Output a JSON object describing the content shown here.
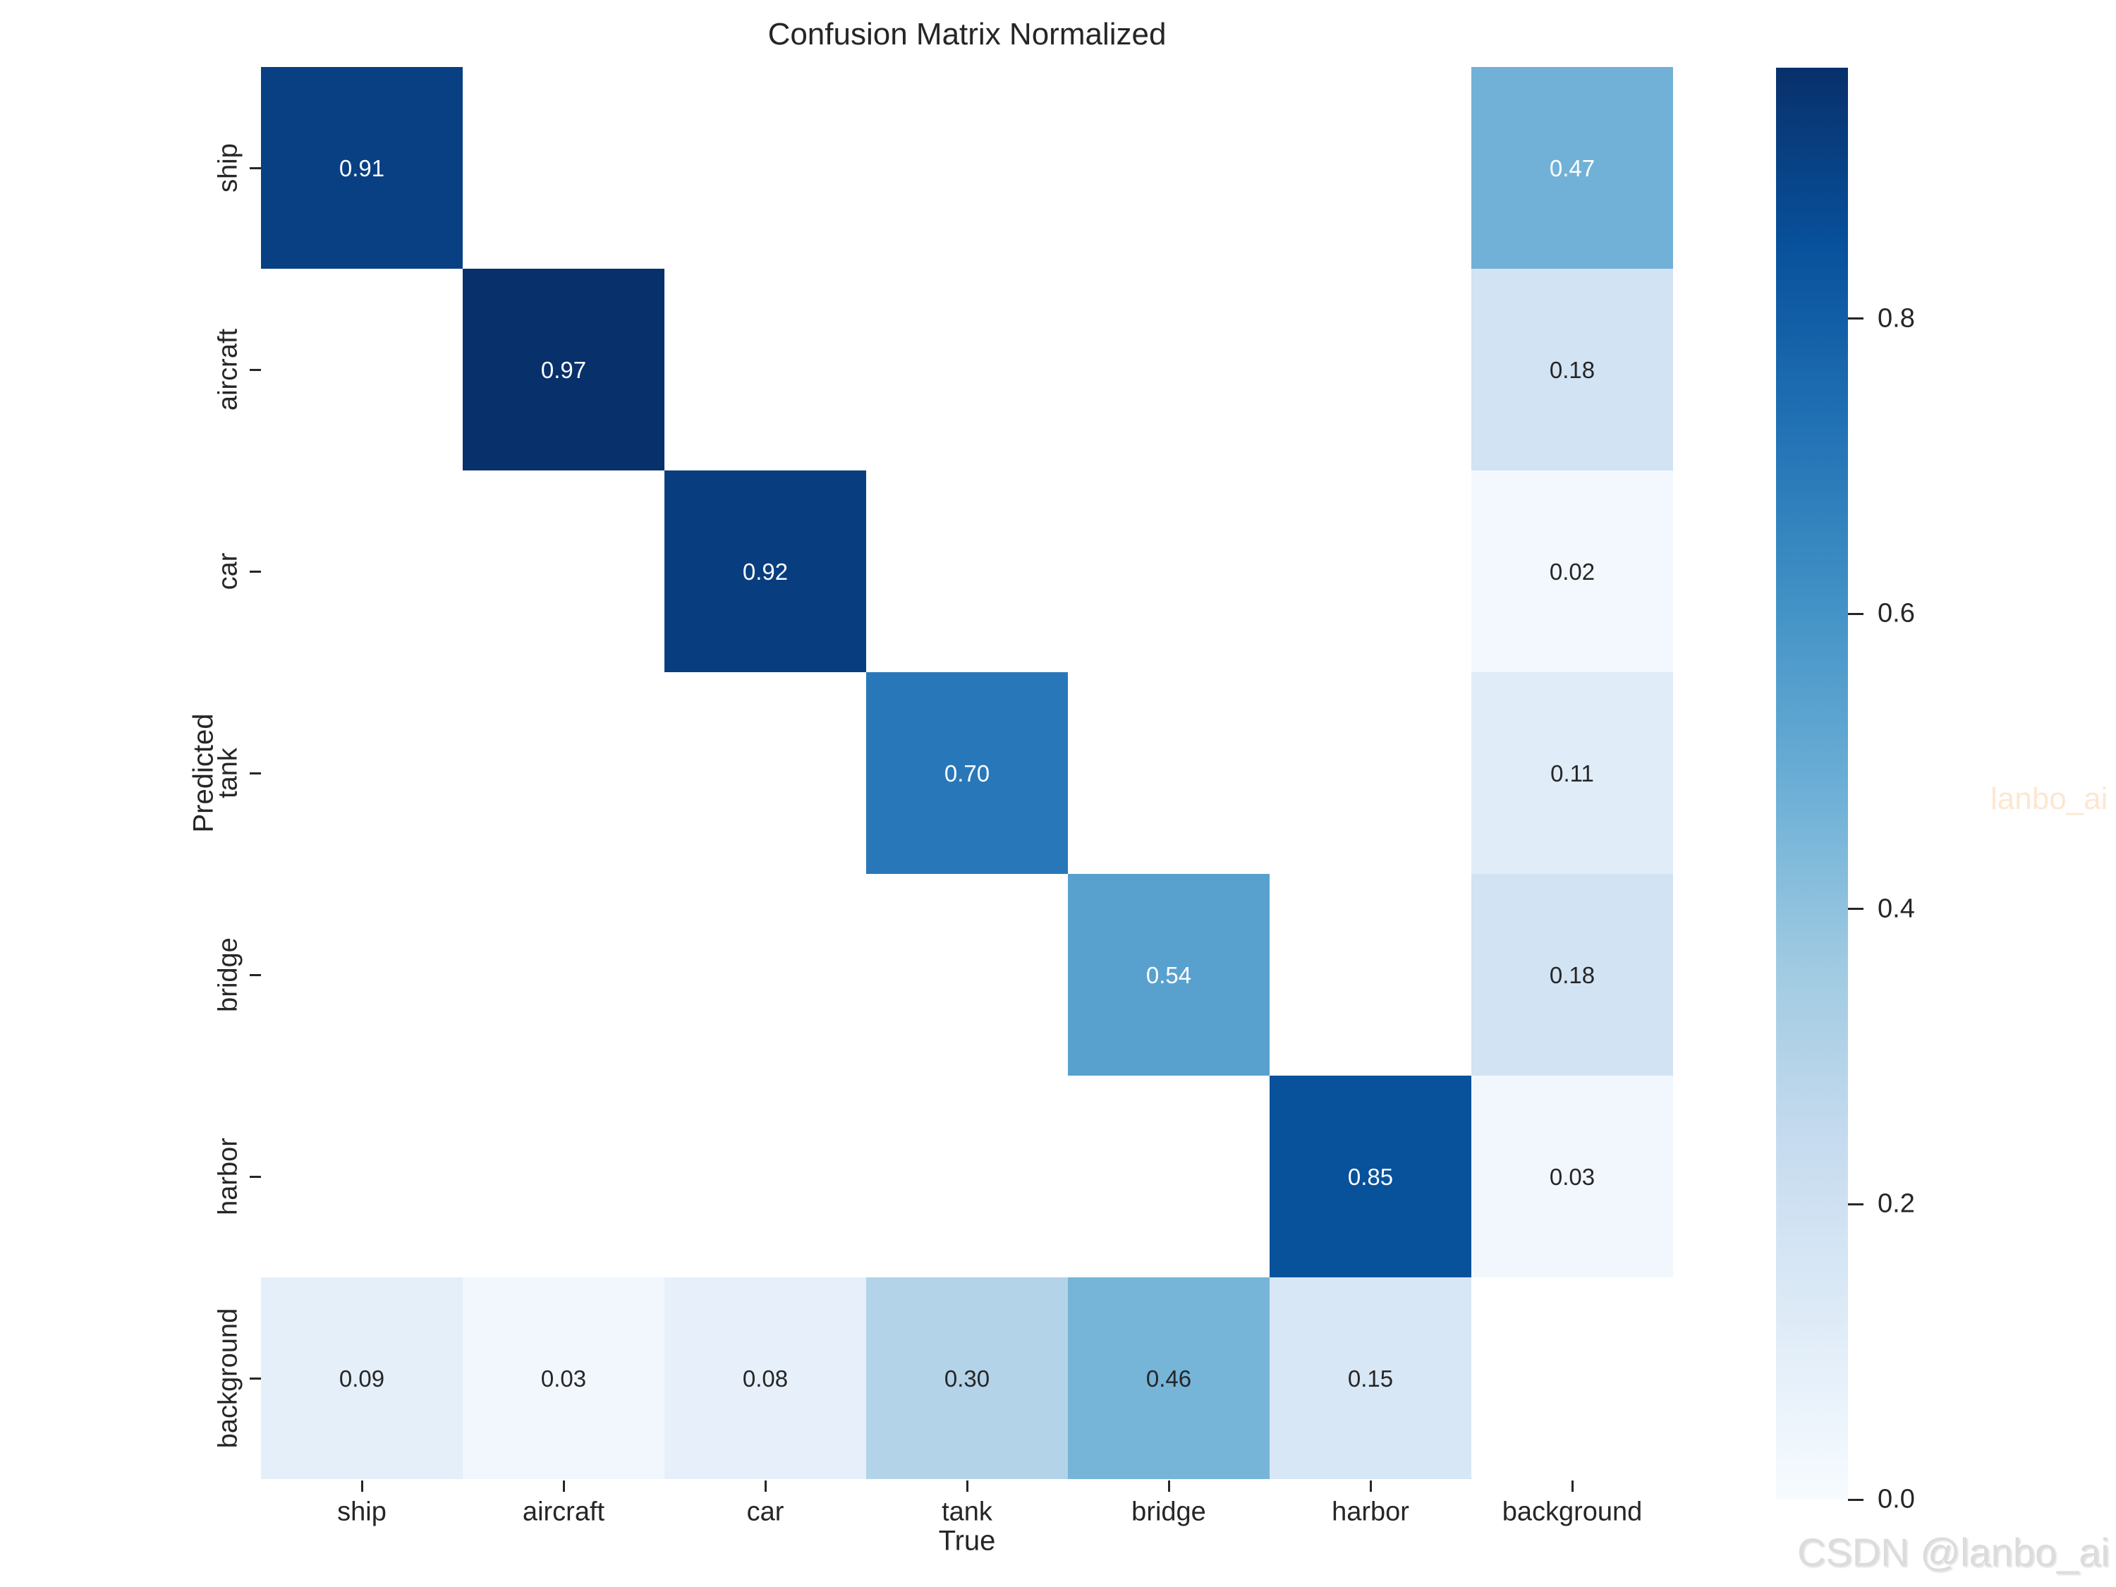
{
  "figure": {
    "title": "Confusion Matrix Normalized"
  },
  "chart_data": {
    "type": "heatmap",
    "title": "Confusion Matrix Normalized",
    "xlabel": "True",
    "ylabel": "Predicted",
    "x_categories": [
      "ship",
      "aircraft",
      "car",
      "tank",
      "bridge",
      "harbor",
      "background"
    ],
    "y_categories": [
      "ship",
      "aircraft",
      "car",
      "tank",
      "bridge",
      "harbor",
      "background"
    ],
    "matrix": [
      [
        0.91,
        null,
        null,
        null,
        null,
        null,
        0.47
      ],
      [
        null,
        0.97,
        null,
        null,
        null,
        null,
        0.18
      ],
      [
        null,
        null,
        0.92,
        null,
        null,
        null,
        0.02
      ],
      [
        null,
        null,
        null,
        0.7,
        null,
        null,
        0.11
      ],
      [
        null,
        null,
        null,
        null,
        0.54,
        null,
        0.18
      ],
      [
        null,
        null,
        null,
        null,
        null,
        0.85,
        0.03
      ],
      [
        0.09,
        0.03,
        0.08,
        0.3,
        0.46,
        0.15,
        null
      ]
    ],
    "cell_label_decimals": 2,
    "colormap": "Blues",
    "vmin": 0.0,
    "vmax": 0.97,
    "empty_cell_color": "#ffffff",
    "grid": false,
    "legend": null,
    "colorbar": {
      "position": "right",
      "ticks": [
        "0.0",
        "0.2",
        "0.4",
        "0.6",
        "0.8"
      ]
    }
  },
  "watermarks": {
    "side": "lanbo_ai",
    "corner": "CSDN @lanbo_ai"
  },
  "colors": {
    "annotation_dark": "#262626",
    "annotation_light": "#ffffff",
    "axis_text": "#262626",
    "watermark_side": "#fde7d2",
    "watermark_corner": "#dcdcdc"
  }
}
